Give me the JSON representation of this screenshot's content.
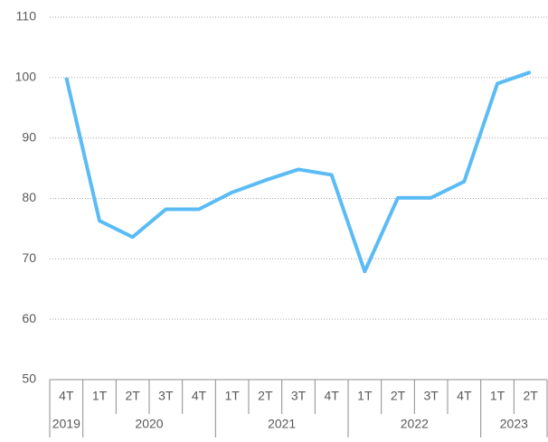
{
  "chart_data": {
    "type": "line",
    "categories": [
      "4T",
      "1T",
      "2T",
      "3T",
      "4T",
      "1T",
      "2T",
      "3T",
      "4T",
      "1T",
      "2T",
      "3T",
      "4T",
      "1T",
      "2T"
    ],
    "year_labels": [
      "2019",
      "2020",
      null,
      null,
      null,
      "2021",
      null,
      null,
      null,
      "2022",
      null,
      null,
      null,
      "2023",
      null
    ],
    "values": [
      100,
      76.3,
      73.6,
      78.2,
      78.2,
      81,
      83,
      84.8,
      83.9,
      67.9,
      80.1,
      80.1,
      82.8,
      99,
      100.9
    ],
    "color": "#5bbcf5",
    "ylim": [
      50,
      110
    ],
    "yticks": [
      50,
      60,
      70,
      80,
      90,
      100,
      110
    ],
    "grid": true
  }
}
